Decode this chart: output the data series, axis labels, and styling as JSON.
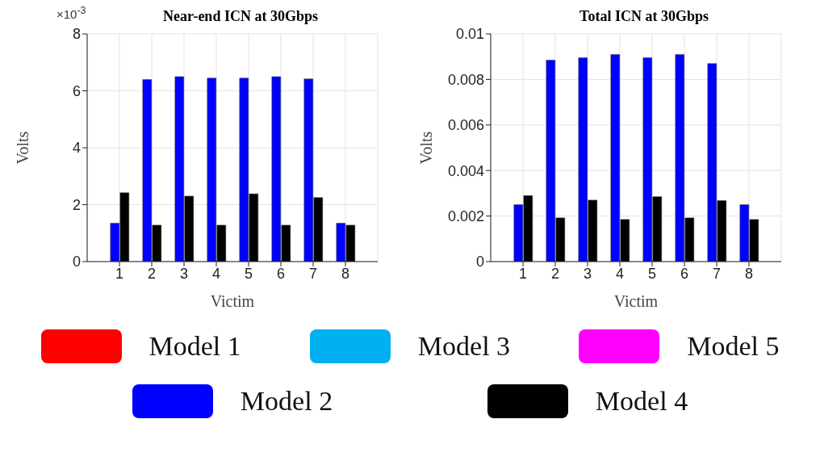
{
  "chart_data": [
    {
      "type": "bar",
      "title": "Near-end ICN at 30Gbps",
      "xlabel": "Victim",
      "ylabel": "Volts",
      "annotations": [
        "×10$^{-3}$"
      ],
      "categories": [
        "1",
        "2",
        "3",
        "4",
        "5",
        "6",
        "7",
        "8"
      ],
      "series": [
        {
          "name": "Model 1",
          "color": "#ff0000",
          "values": [
            null,
            null,
            null,
            null,
            null,
            null,
            null,
            null
          ]
        },
        {
          "name": "Model 2",
          "color": "#0000ff",
          "values": [
            1.35,
            6.4,
            6.5,
            6.45,
            6.45,
            6.5,
            6.42,
            1.35
          ]
        },
        {
          "name": "Model 3",
          "color": "#00b0f0",
          "values": [
            null,
            null,
            null,
            null,
            null,
            null,
            null,
            null
          ]
        },
        {
          "name": "Model 4",
          "color": "#000000",
          "values": [
            2.42,
            1.28,
            2.3,
            1.28,
            2.38,
            1.28,
            2.25,
            1.28
          ]
        },
        {
          "name": "Model 5",
          "color": "#ff00ff",
          "values": [
            null,
            null,
            null,
            null,
            null,
            null,
            null,
            null
          ]
        }
      ],
      "ylim": [
        0,
        8
      ],
      "yticks": [
        0,
        2,
        4,
        6,
        8
      ],
      "grid": true,
      "legend": "bottom"
    },
    {
      "type": "bar",
      "title": "Total ICN at 30Gbps",
      "xlabel": "Victim",
      "ylabel": "Volts",
      "categories": [
        "1",
        "2",
        "3",
        "4",
        "5",
        "6",
        "7",
        "8"
      ],
      "series": [
        {
          "color": "#0000ff",
          "values": [
            0.0025,
            0.00885,
            0.00895,
            0.0091,
            0.00895,
            0.0091,
            0.0087,
            0.0025
          ]
        },
        {
          "color": "#000000",
          "values": [
            0.0029,
            0.00192,
            0.0027,
            0.00185,
            0.00285,
            0.00192,
            0.00268,
            0.00185
          ]
        }
      ],
      "ylim": [
        0,
        0.01
      ],
      "yticks": [
        0,
        0.002,
        0.004,
        0.006,
        0.008,
        0.01
      ],
      "grid": true
    }
  ]
}
